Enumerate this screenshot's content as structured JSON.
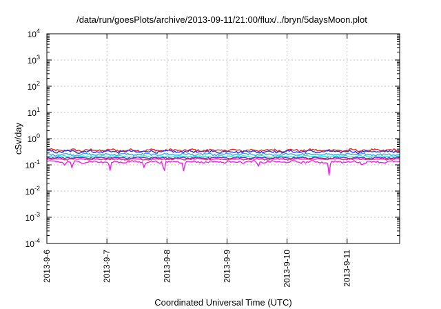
{
  "chart_data": {
    "type": "line",
    "title": "/data/run/goesPlots/archive/2013-09-11/21:00/flux/../bryn/5daysMoon.plot",
    "xlabel": "Coordinated Universal Time (UTC)",
    "ylabel": "cSv/day",
    "yscale": "log",
    "ylim": [
      0.0001,
      10000
    ],
    "y_ticks": [
      {
        "base": "10",
        "exp": "-4"
      },
      {
        "base": "10",
        "exp": "-3"
      },
      {
        "base": "10",
        "exp": "-2"
      },
      {
        "base": "10",
        "exp": "-1"
      },
      {
        "base": "10",
        "exp": "0"
      },
      {
        "base": "10",
        "exp": "1"
      },
      {
        "base": "10",
        "exp": "2"
      },
      {
        "base": "10",
        "exp": "3"
      },
      {
        "base": "10",
        "exp": "4"
      }
    ],
    "xlim": [
      "2013-09-06",
      "2013-09-11 21:00"
    ],
    "x_ticks": [
      "2013-9-6",
      "2013-9-7",
      "2013-9-8",
      "2013-9-9",
      "2013-9-10",
      "2013-9-11"
    ],
    "grid": true,
    "legend": "none",
    "series": [
      {
        "color": "#e8242a",
        "level": 0.36,
        "spread": 0.12,
        "dips": []
      },
      {
        "color": "#1e3de8",
        "level": 0.32,
        "spread": 0.12,
        "dips": []
      },
      {
        "color": "#3aa7e8",
        "level": 0.25,
        "spread": 0.1,
        "dips": []
      },
      {
        "color": "#2ee8d0",
        "level": 0.21,
        "spread": 0.08,
        "dips": []
      },
      {
        "color": "#7a2ac8",
        "level": 0.185,
        "spread": 0.07,
        "dips": []
      },
      {
        "color": "#e8207a",
        "level": 0.165,
        "spread": 0.07,
        "dips": []
      },
      {
        "color": "#f020f0",
        "level": 0.13,
        "spread": 0.1,
        "dips": [
          {
            "day": 0.3,
            "value": 0.09
          },
          {
            "day": 0.42,
            "value": 0.07
          },
          {
            "day": 1.05,
            "value": 0.055
          },
          {
            "day": 1.62,
            "value": 0.07
          },
          {
            "day": 1.95,
            "value": 0.035
          },
          {
            "day": 2.28,
            "value": 0.05
          },
          {
            "day": 3.52,
            "value": 0.08
          },
          {
            "day": 4.7,
            "value": 0.04
          },
          {
            "day": 5.25,
            "value": 0.085
          }
        ]
      }
    ]
  }
}
